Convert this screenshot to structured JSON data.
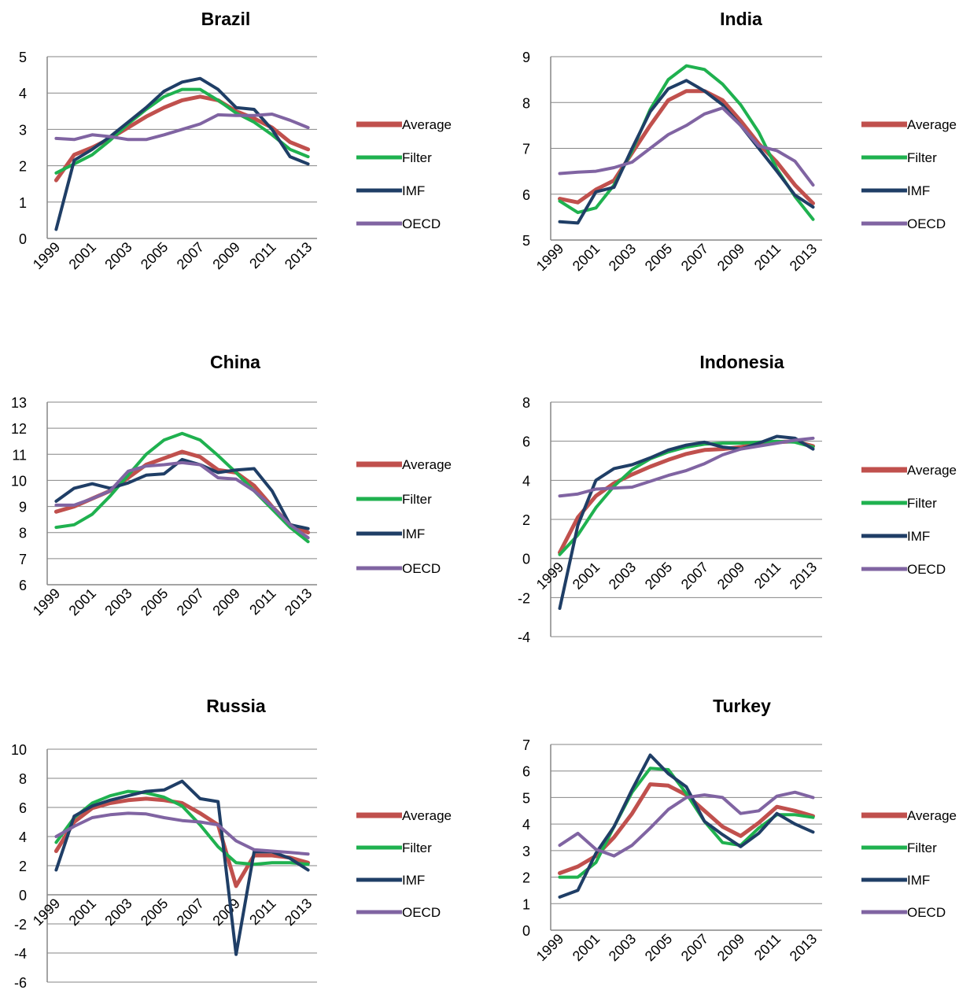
{
  "colors": {
    "Average": "#C0504D",
    "Filter": "#1FB14F",
    "IMF": "#1F3E66",
    "OECD": "#8064A2"
  },
  "chart_data": [
    {
      "type": "line",
      "title": "Brazil",
      "x": [
        1999,
        2000,
        2001,
        2002,
        2003,
        2004,
        2005,
        2006,
        2007,
        2008,
        2009,
        2010,
        2011,
        2012,
        2013
      ],
      "xticks": [
        "1999",
        "2001",
        "2003",
        "2005",
        "2007",
        "2009",
        "2011",
        "2013"
      ],
      "ylim": [
        0,
        5
      ],
      "yticks": [
        0,
        1,
        2,
        3,
        4,
        5
      ],
      "grid": true,
      "legend": "right",
      "series": [
        {
          "name": "Average",
          "values": [
            1.6,
            2.3,
            2.5,
            2.75,
            3.05,
            3.35,
            3.6,
            3.8,
            3.9,
            3.8,
            3.5,
            3.3,
            3.05,
            2.65,
            2.45
          ]
        },
        {
          "name": "Filter",
          "values": [
            1.8,
            2.05,
            2.3,
            2.7,
            3.15,
            3.55,
            3.9,
            4.1,
            4.1,
            3.8,
            3.45,
            3.2,
            2.85,
            2.45,
            2.25
          ]
        },
        {
          "name": "IMF",
          "values": [
            0.25,
            2.15,
            2.45,
            2.8,
            3.2,
            3.6,
            4.05,
            4.3,
            4.4,
            4.1,
            3.6,
            3.55,
            3.0,
            2.25,
            2.05
          ]
        },
        {
          "name": "OECD",
          "values": [
            2.75,
            2.72,
            2.85,
            2.8,
            2.72,
            2.72,
            2.85,
            3.0,
            3.15,
            3.4,
            3.38,
            3.38,
            3.42,
            3.25,
            3.05
          ]
        }
      ]
    },
    {
      "type": "line",
      "title": "India",
      "x": [
        1999,
        2000,
        2001,
        2002,
        2003,
        2004,
        2005,
        2006,
        2007,
        2008,
        2009,
        2010,
        2011,
        2012,
        2013
      ],
      "xticks": [
        "1999",
        "2001",
        "2003",
        "2005",
        "2007",
        "2009",
        "2011",
        "2013"
      ],
      "ylim": [
        5,
        9
      ],
      "yticks": [
        5,
        6,
        7,
        8,
        9
      ],
      "grid": true,
      "legend": "right",
      "series": [
        {
          "name": "Average",
          "values": [
            5.9,
            5.82,
            6.1,
            6.3,
            6.9,
            7.5,
            8.05,
            8.25,
            8.25,
            8.05,
            7.6,
            7.1,
            6.7,
            6.2,
            5.8
          ]
        },
        {
          "name": "Filter",
          "values": [
            5.85,
            5.6,
            5.7,
            6.2,
            6.95,
            7.85,
            8.5,
            8.8,
            8.72,
            8.4,
            7.95,
            7.35,
            6.55,
            5.95,
            5.45
          ]
        },
        {
          "name": "IMF",
          "values": [
            5.4,
            5.37,
            6.05,
            6.15,
            7.0,
            7.8,
            8.3,
            8.48,
            8.25,
            7.95,
            7.5,
            7.0,
            6.5,
            5.98,
            5.72
          ]
        },
        {
          "name": "OECD",
          "values": [
            6.45,
            6.48,
            6.5,
            6.58,
            6.7,
            7.0,
            7.3,
            7.5,
            7.75,
            7.88,
            7.5,
            7.05,
            6.95,
            6.72,
            6.2
          ]
        }
      ]
    },
    {
      "type": "line",
      "title": "China",
      "x": [
        1999,
        2000,
        2001,
        2002,
        2003,
        2004,
        2005,
        2006,
        2007,
        2008,
        2009,
        2010,
        2011,
        2012,
        2013
      ],
      "xticks": [
        "1999",
        "2001",
        "2003",
        "2005",
        "2007",
        "2009",
        "2011",
        "2013"
      ],
      "ylim": [
        6,
        13
      ],
      "yticks": [
        6,
        7,
        8,
        9,
        10,
        11,
        12,
        13
      ],
      "grid": true,
      "legend": "right",
      "series": [
        {
          "name": "Average",
          "values": [
            8.8,
            9.0,
            9.3,
            9.6,
            10.1,
            10.6,
            10.85,
            11.1,
            10.9,
            10.4,
            10.3,
            9.8,
            9.0,
            8.3,
            8.0
          ]
        },
        {
          "name": "Filter",
          "values": [
            8.2,
            8.3,
            8.7,
            9.4,
            10.2,
            11.0,
            11.55,
            11.8,
            11.55,
            10.95,
            10.3,
            9.6,
            8.9,
            8.2,
            7.65
          ]
        },
        {
          "name": "IMF",
          "values": [
            9.2,
            9.7,
            9.87,
            9.7,
            9.9,
            10.2,
            10.25,
            10.8,
            10.6,
            10.3,
            10.4,
            10.45,
            9.6,
            8.3,
            8.15
          ]
        },
        {
          "name": "OECD",
          "values": [
            9.05,
            9.05,
            9.3,
            9.6,
            10.35,
            10.55,
            10.6,
            10.68,
            10.6,
            10.1,
            10.05,
            9.6,
            9.0,
            8.3,
            7.8
          ]
        }
      ]
    },
    {
      "type": "line",
      "title": "Indonesia",
      "x": [
        1999,
        2000,
        2001,
        2002,
        2003,
        2004,
        2005,
        2006,
        2007,
        2008,
        2009,
        2010,
        2011,
        2012,
        2013
      ],
      "xticks": [
        "1999",
        "2001",
        "2003",
        "2005",
        "2007",
        "2009",
        "2011",
        "2013"
      ],
      "ylim": [
        -4,
        8
      ],
      "yticks": [
        -4,
        -2,
        0,
        2,
        4,
        6,
        8
      ],
      "grid": true,
      "legend": "right",
      "series": [
        {
          "name": "Average",
          "values": [
            0.3,
            2.1,
            3.2,
            3.85,
            4.3,
            4.7,
            5.05,
            5.35,
            5.55,
            5.6,
            5.7,
            5.85,
            5.95,
            6.0,
            5.75
          ]
        },
        {
          "name": "Filter",
          "values": [
            0.2,
            1.2,
            2.6,
            3.7,
            4.55,
            5.1,
            5.45,
            5.7,
            5.85,
            5.9,
            5.9,
            5.95,
            6.0,
            5.95,
            5.7
          ]
        },
        {
          "name": "IMF",
          "values": [
            -2.55,
            1.7,
            4.0,
            4.6,
            4.8,
            5.15,
            5.55,
            5.8,
            5.95,
            5.7,
            5.6,
            5.9,
            6.25,
            6.15,
            5.6
          ]
        },
        {
          "name": "OECD",
          "values": [
            3.2,
            3.3,
            3.55,
            3.6,
            3.65,
            3.95,
            4.25,
            4.5,
            4.85,
            5.3,
            5.6,
            5.75,
            5.9,
            6.05,
            6.15
          ]
        }
      ]
    },
    {
      "type": "line",
      "title": "Russia",
      "x": [
        1999,
        2000,
        2001,
        2002,
        2003,
        2004,
        2005,
        2006,
        2007,
        2008,
        2009,
        2010,
        2011,
        2012,
        2013
      ],
      "xticks": [
        "1999",
        "2001",
        "2003",
        "2005",
        "2007",
        "2009",
        "2011",
        "2013"
      ],
      "ylim": [
        -6,
        10
      ],
      "yticks": [
        -6,
        -4,
        -2,
        0,
        2,
        4,
        6,
        8,
        10
      ],
      "grid": true,
      "legend": "right",
      "series": [
        {
          "name": "Average",
          "values": [
            3.0,
            5.0,
            5.95,
            6.3,
            6.5,
            6.6,
            6.5,
            6.3,
            5.6,
            4.8,
            0.6,
            2.7,
            2.7,
            2.55,
            2.2
          ]
        },
        {
          "name": "Filter",
          "values": [
            3.6,
            5.3,
            6.3,
            6.8,
            7.1,
            7.0,
            6.7,
            6.1,
            4.8,
            3.3,
            2.2,
            2.1,
            2.2,
            2.2,
            2.1
          ]
        },
        {
          "name": "IMF",
          "values": [
            1.7,
            5.4,
            6.1,
            6.5,
            6.8,
            7.1,
            7.2,
            7.8,
            6.6,
            6.4,
            -4.1,
            2.95,
            2.95,
            2.5,
            1.7
          ]
        },
        {
          "name": "OECD",
          "values": [
            4.0,
            4.7,
            5.3,
            5.5,
            5.6,
            5.55,
            5.3,
            5.1,
            5.0,
            4.8,
            3.7,
            3.1,
            3.0,
            2.9,
            2.8
          ]
        }
      ]
    },
    {
      "type": "line",
      "title": "Turkey",
      "x": [
        1999,
        2000,
        2001,
        2002,
        2003,
        2004,
        2005,
        2006,
        2007,
        2008,
        2009,
        2010,
        2011,
        2012,
        2013
      ],
      "xticks": [
        "1999",
        "2001",
        "2003",
        "2005",
        "2007",
        "2009",
        "2011",
        "2013"
      ],
      "ylim": [
        0,
        7
      ],
      "yticks": [
        0,
        1,
        2,
        3,
        4,
        5,
        6,
        7
      ],
      "grid": true,
      "legend": "right",
      "series": [
        {
          "name": "Average",
          "values": [
            2.15,
            2.4,
            2.8,
            3.5,
            4.4,
            5.5,
            5.45,
            5.1,
            4.5,
            3.9,
            3.55,
            4.05,
            4.65,
            4.5,
            4.3
          ]
        },
        {
          "name": "Filter",
          "values": [
            2.0,
            2.0,
            2.55,
            3.9,
            5.2,
            6.1,
            6.05,
            5.15,
            4.1,
            3.3,
            3.2,
            3.85,
            4.35,
            4.35,
            4.25
          ]
        },
        {
          "name": "IMF",
          "values": [
            1.25,
            1.5,
            2.9,
            3.9,
            5.3,
            6.6,
            5.9,
            5.4,
            4.1,
            3.6,
            3.15,
            3.65,
            4.4,
            4.0,
            3.7
          ]
        },
        {
          "name": "OECD",
          "values": [
            3.2,
            3.65,
            3.05,
            2.8,
            3.2,
            3.85,
            4.55,
            5.0,
            5.1,
            5.0,
            4.4,
            4.5,
            5.05,
            5.2,
            5.0
          ]
        }
      ]
    }
  ]
}
